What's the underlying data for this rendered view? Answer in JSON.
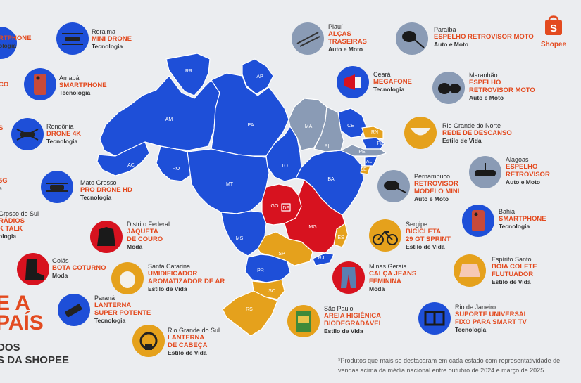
{
  "brand": {
    "name": "Shopee"
  },
  "headline": {
    "line1": "E A",
    "line2": "PAÍS"
  },
  "subline": {
    "line1": "DOS",
    "line2": "S DA SHOPEE"
  },
  "footnote": "*Produtos que mais se destacaram em cada estado com representatividade de vendas acima da média nacional entre outubro de 2024 e março de 2025.",
  "legend_colors": {
    "tecnologia": "#1e4fd8",
    "auto_e_moto": "#8a9bb5",
    "estilo_de_vida": "#e5a11c",
    "moda": "#d7121f",
    "accent": "#e34a1f"
  },
  "map_labels": {
    "RR": "RR",
    "AP": "AP",
    "AM": "AM",
    "PA": "PA",
    "MA": "MA",
    "CE": "CE",
    "RN": "RN",
    "PB": "PB",
    "PI": "PI",
    "PE": "PE",
    "AL": "AL",
    "SE": "SE",
    "AC": "AC",
    "RO": "RO",
    "TO": "TO",
    "BA": "BA",
    "MT": "MT",
    "GO": "GO",
    "DF": "DF",
    "MG": "MG",
    "ES": "ES",
    "MS": "MS",
    "SP": "SP",
    "RJ": "RJ",
    "PR": "PR",
    "SC": "SC",
    "RS": "RS"
  },
  "callouts": {
    "left_top": {
      "product": "RTPHONE",
      "category": "ologia"
    },
    "left_2": {
      "product": "CO"
    },
    "left_3": {
      "product": "S"
    },
    "left_4": {
      "product": "5G",
      "category": "a"
    },
    "left_5": {
      "state": "Grosso do Sul",
      "product1": "RÁDIOS",
      "product2": "K TALK",
      "category": "ologia"
    },
    "roraima": {
      "state": "Roraima",
      "product": "MINI DRONE",
      "category": "Tecnologia"
    },
    "amapa": {
      "state": "Amapá",
      "product": "SMARTPHONE",
      "category": "Tecnologia"
    },
    "rondonia": {
      "state": "Rondônia",
      "product": "DRONE 4K",
      "category": "Tecnologia"
    },
    "mato_grosso": {
      "state": "Mato Grosso",
      "product": "PRO DRONE HD",
      "category": "Tecnologia"
    },
    "distrito_federal": {
      "state": "Distrito Federal",
      "product1": "JAQUETA",
      "product2": "DE COURO",
      "category": "Moda"
    },
    "goias": {
      "state": "Goiás",
      "product": "BOTA COTURNO",
      "category": "Moda"
    },
    "santa_catarina": {
      "state": "Santa Catarina",
      "product1": "UMIDIFICADOR",
      "product2": "AROMATIZADOR DE AR",
      "category": "Estilo de Vida"
    },
    "parana": {
      "state": "Paraná",
      "product1": "LANTERNA",
      "product2": "SUPER POTENTE",
      "category": "Tecnologia"
    },
    "rio_grande_do_sul": {
      "state": "Rio Grande do Sul",
      "product1": "LANTERNA",
      "product2": "DE CABEÇA",
      "category": "Estilo de Vida"
    },
    "piaui": {
      "state": "Piauí",
      "product1": "ALÇAS",
      "product2": "TRASEIRAS",
      "category": "Auto e Moto"
    },
    "ceara": {
      "state": "Ceará",
      "product": "MEGAFONE",
      "category": "Tecnologia"
    },
    "paraiba": {
      "state": "Paraíba",
      "product": "ESPELHO RETROVISOR MOTO",
      "category": "Auto e Moto"
    },
    "maranhao": {
      "state": "Maranhão",
      "product1": "ESPELHO",
      "product2": "RETROVISOR MOTO",
      "category": "Auto e Moto"
    },
    "rio_grande_do_norte": {
      "state": "Rio Grande do Norte",
      "product": "REDE DE DESCANSO",
      "category": "Estilo de Vida"
    },
    "alagoas": {
      "state": "Alagoas",
      "product1": "ESPELHO",
      "product2": "RETROVISOR",
      "category": "Auto e Moto"
    },
    "pernambuco": {
      "state": "Pernambuco",
      "product1": "RETROVISOR",
      "product2": "MODELO MINI",
      "category": "Auto e Moto"
    },
    "bahia": {
      "state": "Bahia",
      "product": "SMARTPHONE",
      "category": "Tecnologia"
    },
    "sergipe": {
      "state": "Sergipe",
      "product1": "BICICLETA",
      "product2": "29 GT SPRINT",
      "category": "Estilo de Vida"
    },
    "espirito_santo": {
      "state": "Espírito Santo",
      "product1": "BOIA COLETE",
      "product2": "FLUTUADOR",
      "category": "Estilo de Vida"
    },
    "minas_gerais": {
      "state": "Minas Gerais",
      "product1": "CALÇA JEANS",
      "product2": "FEMININA",
      "category": "Moda"
    },
    "sao_paulo": {
      "state": "São Paulo",
      "product1": "AREIA HIGIÊNICA",
      "product2": "BIODEGRADÁVEL",
      "category": "Estilo de Vida"
    },
    "rio_de_janeiro": {
      "state": "Rio de Janeiro",
      "product1": "SUPORTE UNIVERSAL",
      "product2": "FIXO PARA SMART TV",
      "category": "Tecnologia"
    }
  }
}
